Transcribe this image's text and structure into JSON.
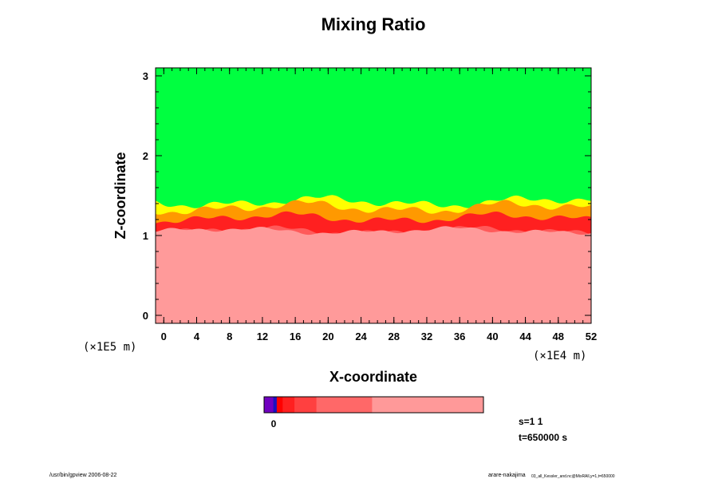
{
  "chart_data": {
    "type": "heatmap",
    "title": "Mixing Ratio",
    "xlabel": "X-coordinate",
    "ylabel": "Z-coordinate",
    "x_ticks": [
      "0",
      "4",
      "8",
      "12",
      "16",
      "20",
      "24",
      "28",
      "32",
      "36",
      "40",
      "44",
      "48",
      "52"
    ],
    "y_ticks": [
      "0",
      "1",
      "2",
      "3"
    ],
    "xlim": [
      -1,
      52
    ],
    "ylim": [
      -0.1,
      3.1
    ],
    "x_unit": "(×1E4 m)",
    "y_unit": "(×1E5 m)",
    "grid": false,
    "layers": [
      {
        "level": "green",
        "color": "#00ff40",
        "from_z": 1.45,
        "to_z": 3.1
      },
      {
        "level": "yellow",
        "color": "#ffff00",
        "base_z": 1.42
      },
      {
        "level": "orange",
        "color": "#ff9900",
        "base_z": 1.35
      },
      {
        "level": "red",
        "color": "#ff2020",
        "base_z": 1.22
      },
      {
        "level": "light-red",
        "color": "#ff5a5a",
        "base_z": 1.06
      },
      {
        "level": "pink",
        "color": "#ff9a9a",
        "from_z": -0.1,
        "to_z": 1.06
      }
    ],
    "colorbar": {
      "segments": [
        "#7000c0",
        "#1a10c0",
        "#ff0000",
        "#ff2020",
        "#ff4040",
        "#ff6868",
        "#ff9999"
      ],
      "label": "0"
    }
  },
  "annotations": {
    "s_label": "s=1 1",
    "t_label": "t=650000 s"
  },
  "footer": {
    "left": "/usr/bin/gpview 2006-08-22",
    "right": "arare-nakajima",
    "right_sub": "03_all_Kessler_and.nc@MixRAll,y=1,t=650000"
  }
}
